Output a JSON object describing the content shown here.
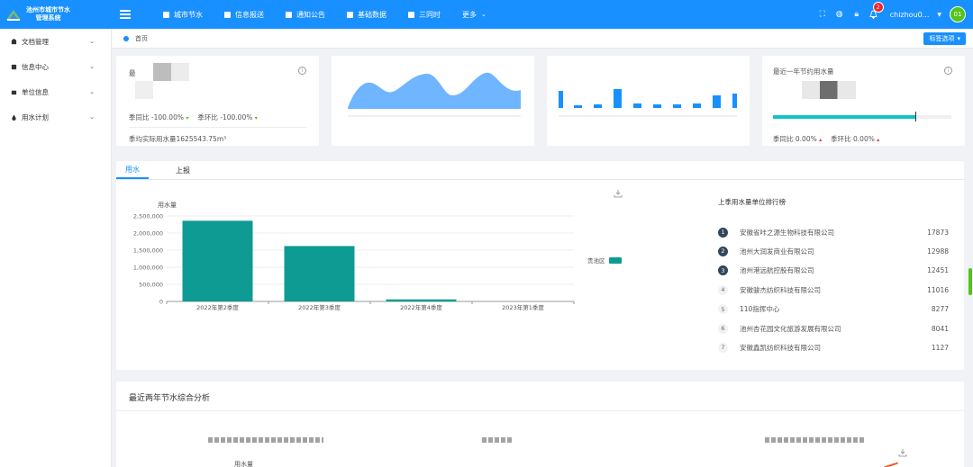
{
  "app": {
    "title_line1": "池州市城市节水",
    "title_line2": "管理系统"
  },
  "nav": [
    {
      "label": "城市节水",
      "icon": "building-icon"
    },
    {
      "label": "信息报送",
      "icon": "send-icon"
    },
    {
      "label": "通知公告",
      "icon": "notice-icon"
    },
    {
      "label": "基础数据",
      "icon": "database-icon"
    },
    {
      "label": "三同时",
      "icon": "grid-icon"
    },
    {
      "label": "更多",
      "icon": "chevron-down-icon"
    }
  ],
  "user": {
    "name": "chizhou0...",
    "avatar_text": "01",
    "notification_count": "2"
  },
  "sidebar": [
    {
      "label": "文档管理",
      "icon": "docs-icon"
    },
    {
      "label": "信息中心",
      "icon": "info-center-icon"
    },
    {
      "label": "单位信息",
      "icon": "unit-icon"
    },
    {
      "label": "用水计划",
      "icon": "water-drop-icon"
    }
  ],
  "breadcrumb": {
    "home": "首页"
  },
  "tag_button": "标签选项",
  "card1": {
    "title": "最",
    "yoy_label": "季同比",
    "yoy_value": "-100.00%",
    "qoq_label": "季环比",
    "qoq_value": "-100.00%",
    "footer": "季均实际用水量1625543.75m³"
  },
  "card4": {
    "title": "最近一年节约用水量",
    "progress_fraction": 0.8,
    "yoy_label": "季同比",
    "yoy_value": "0.00%",
    "qoq_label": "季环比",
    "qoq_value": "0.00%"
  },
  "tabs": [
    {
      "label": "用水",
      "active": true
    },
    {
      "label": "上报",
      "active": false
    }
  ],
  "chart_data": {
    "type": "bar",
    "ylabel": "用水量",
    "categories": [
      "2022年第2季度",
      "2022年第3季度",
      "2022年第4季度",
      "2023年第1季度"
    ],
    "series": [
      {
        "name": "贵池区",
        "values": [
          2360000,
          1620000,
          60000,
          0
        ]
      }
    ],
    "y_ticks": [
      "0",
      "500,000",
      "1,000,000",
      "1,500,000",
      "2,000,000",
      "2,500,000"
    ],
    "ylim": [
      0,
      2500000
    ],
    "color": "#0e9b94",
    "legend_position": "right"
  },
  "ranking": {
    "title": "上季用水量单位排行榜",
    "rows": [
      {
        "rank": "1",
        "name": "安徽省咔之源生物科技有限公司",
        "value": "17873"
      },
      {
        "rank": "2",
        "name": "池州大润发商业有限公司",
        "value": "12988"
      },
      {
        "rank": "3",
        "name": "池州港远航控股有限公司",
        "value": "12451"
      },
      {
        "rank": "4",
        "name": "安徽骏杰纺织科技有限公司",
        "value": "11016"
      },
      {
        "rank": "5",
        "name": "110指挥中心",
        "value": "8277"
      },
      {
        "rank": "6",
        "name": "池州杏花园文化旅游发展有限公司",
        "value": "8041"
      },
      {
        "rank": "7",
        "name": "安徽鑫凯纺织科技有限公司",
        "value": "1127"
      }
    ]
  },
  "analysis": {
    "title": "最近两年节水综合分析",
    "ylabel": "用水量"
  },
  "colors": {
    "primary": "#1890ff",
    "teal": "#0e9b94",
    "wave": "#6fb5ff",
    "progress": "#13c2c2"
  }
}
